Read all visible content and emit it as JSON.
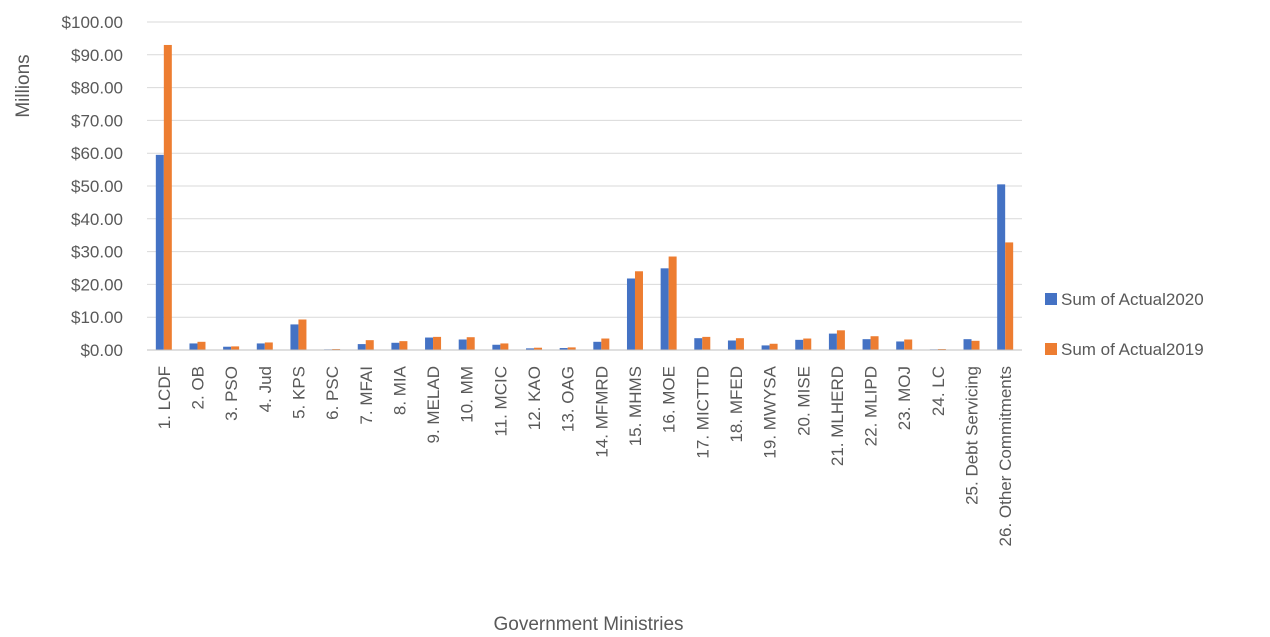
{
  "chart_data": {
    "type": "bar",
    "title": "",
    "xlabel": "Government Ministries",
    "ylabel": "Millions",
    "ylim": [
      0,
      100
    ],
    "yticks": [
      0,
      10,
      20,
      30,
      40,
      50,
      60,
      70,
      80,
      90,
      100
    ],
    "ytick_labels": [
      "$0.00",
      "$10.00",
      "$20.00",
      "$30.00",
      "$40.00",
      "$50.00",
      "$60.00",
      "$70.00",
      "$80.00",
      "$90.00",
      "$100.00"
    ],
    "grid": true,
    "legend_position": "right",
    "categories": [
      "1. LCDF",
      "2. OB",
      "3. PSO",
      "4. Jud",
      "5. KPS",
      "6. PSC",
      "7. MFAI",
      "8. MIA",
      "9. MELAD",
      "10. MM",
      "11. MCIC",
      "12. KAO",
      "13. OAG",
      "14. MFMRD",
      "15. MHMS",
      "16. MOE",
      "17. MICTTD",
      "18. MFED",
      "19. MWYSA",
      "20. MISE",
      "21. MLHERD",
      "22. MLIPD",
      "23. MOJ",
      "24. LC",
      "25. Debt Servicing",
      "26. Other Commitments"
    ],
    "series": [
      {
        "name": "Sum of Actual2020",
        "color": "#4472c4",
        "values": [
          59.5,
          2.0,
          1.0,
          2.0,
          7.8,
          0.2,
          1.8,
          2.2,
          3.8,
          3.2,
          1.6,
          0.5,
          0.6,
          2.5,
          21.8,
          24.9,
          3.6,
          2.9,
          1.4,
          3.1,
          5.0,
          3.3,
          2.6,
          0.2,
          3.3,
          50.5
        ]
      },
      {
        "name": "Sum of Actual2019",
        "color": "#ed7d31",
        "values": [
          93.0,
          2.5,
          1.1,
          2.3,
          9.3,
          0.3,
          3.0,
          2.7,
          4.0,
          3.9,
          2.0,
          0.7,
          0.8,
          3.5,
          24.0,
          28.5,
          4.0,
          3.6,
          1.9,
          3.5,
          6.0,
          4.2,
          3.2,
          0.3,
          2.8,
          32.8
        ]
      }
    ]
  }
}
